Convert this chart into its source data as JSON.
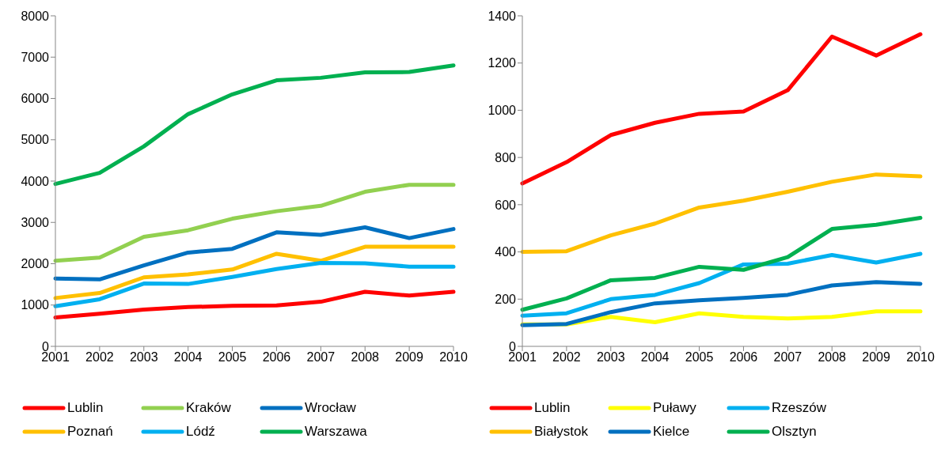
{
  "chart_data": [
    {
      "type": "line",
      "categories": [
        "2001",
        "2002",
        "2003",
        "2004",
        "2005",
        "2006",
        "2007",
        "2008",
        "2009",
        "2010"
      ],
      "ylim": [
        0,
        8000
      ],
      "yticks": [
        0,
        1000,
        2000,
        3000,
        4000,
        5000,
        6000,
        7000,
        8000
      ],
      "grid": false,
      "legend": "bottom",
      "marker": "none",
      "series": [
        {
          "name": "Lublin",
          "color": "#ff0000",
          "values": [
            700,
            790,
            890,
            950,
            980,
            990,
            1080,
            1320,
            1230,
            1320
          ]
        },
        {
          "name": "Kraków",
          "color": "#92d050",
          "values": [
            2070,
            2150,
            2650,
            2810,
            3090,
            3270,
            3400,
            3740,
            3910,
            3910
          ]
        },
        {
          "name": "Wrocław",
          "color": "#0070c0",
          "values": [
            1640,
            1620,
            1960,
            2270,
            2360,
            2760,
            2700,
            2880,
            2620,
            2840
          ]
        },
        {
          "name": "Poznań",
          "color": "#ffc000",
          "values": [
            1170,
            1290,
            1670,
            1740,
            1860,
            2240,
            2070,
            2410,
            2410,
            2410
          ]
        },
        {
          "name": "Lódź",
          "color": "#00b0f0",
          "values": [
            970,
            1140,
            1520,
            1510,
            1680,
            1870,
            2020,
            2010,
            1930,
            1930
          ]
        },
        {
          "name": "Warszawa",
          "color": "#00b050",
          "values": [
            3930,
            4200,
            4840,
            5620,
            6100,
            6440,
            6500,
            6630,
            6640,
            6800
          ]
        }
      ]
    },
    {
      "type": "line",
      "categories": [
        "2001",
        "2002",
        "2003",
        "2004",
        "2005",
        "2006",
        "2007",
        "2008",
        "2009",
        "2010"
      ],
      "ylim": [
        0,
        1400
      ],
      "yticks": [
        0,
        200,
        400,
        600,
        800,
        1000,
        1200,
        1400
      ],
      "grid": false,
      "legend": "bottom",
      "marker": "none",
      "series": [
        {
          "name": "Lublin",
          "color": "#ff0000",
          "values": [
            690,
            780,
            895,
            947,
            985,
            995,
            1085,
            1312,
            1232,
            1322
          ]
        },
        {
          "name": "Puławy",
          "color": "#ffff00",
          "values": [
            93,
            93,
            125,
            102,
            140,
            125,
            118,
            125,
            148,
            148
          ]
        },
        {
          "name": "Rzeszów",
          "color": "#00b0f0",
          "values": [
            130,
            140,
            200,
            218,
            268,
            347,
            350,
            387,
            355,
            392
          ]
        },
        {
          "name": "Białystok",
          "color": "#ffc000",
          "values": [
            400,
            403,
            470,
            520,
            588,
            617,
            655,
            697,
            728,
            720
          ]
        },
        {
          "name": "Kielce",
          "color": "#0070c0",
          "values": [
            90,
            95,
            145,
            182,
            195,
            205,
            218,
            258,
            272,
            265
          ]
        },
        {
          "name": "Olsztyn",
          "color": "#00b050",
          "values": [
            155,
            203,
            280,
            290,
            337,
            324,
            378,
            497,
            515,
            544
          ]
        }
      ]
    }
  ]
}
